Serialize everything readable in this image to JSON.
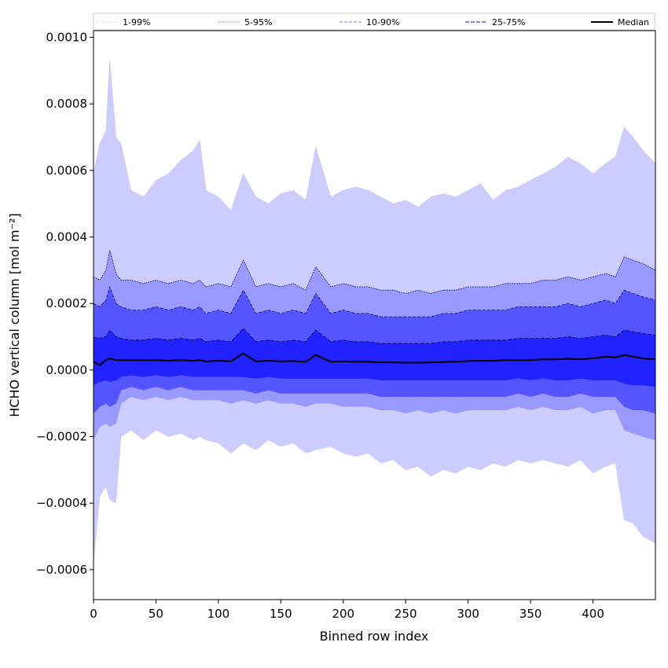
{
  "chart_data": {
    "type": "area",
    "xlabel": "Binned row index",
    "ylabel": "HCHO vertical column [mol m⁻²]",
    "xlim": [
      0,
      450
    ],
    "ylim": [
      -0.00069,
      0.00102
    ],
    "x_ticks": [
      0,
      50,
      100,
      150,
      200,
      250,
      300,
      350,
      400
    ],
    "x_tick_labels": [
      "0",
      "50",
      "100",
      "150",
      "200",
      "250",
      "300",
      "350",
      "400"
    ],
    "y_ticks": [
      -0.0006,
      -0.0004,
      -0.0002,
      0.0,
      0.0002,
      0.0004,
      0.0006,
      0.0008,
      0.001
    ],
    "y_tick_labels": [
      "−0.0006",
      "−0.0004",
      "−0.0002",
      "0.0000",
      "0.0002",
      "0.0004",
      "0.0006",
      "0.0008",
      "0.0010"
    ],
    "grid": false,
    "legend_position": "top (above plot)",
    "x": [
      0,
      5,
      10,
      13,
      18,
      22,
      30,
      40,
      50,
      60,
      70,
      80,
      85,
      90,
      100,
      110,
      120,
      130,
      140,
      150,
      160,
      170,
      178,
      190,
      200,
      210,
      220,
      230,
      240,
      250,
      260,
      270,
      280,
      290,
      300,
      310,
      320,
      330,
      340,
      350,
      360,
      370,
      380,
      390,
      400,
      410,
      418,
      425,
      432,
      440,
      450
    ],
    "series": [
      {
        "name": "1-99%",
        "color": "#ccccff",
        "upper": [
          0.00059,
          0.00068,
          0.00072,
          0.00093,
          0.0007,
          0.00068,
          0.00054,
          0.00052,
          0.00057,
          0.00059,
          0.00063,
          0.00066,
          0.00069,
          0.00054,
          0.00052,
          0.00048,
          0.00059,
          0.00052,
          0.0005,
          0.00053,
          0.00054,
          0.00051,
          0.00067,
          0.00052,
          0.00054,
          0.00055,
          0.00054,
          0.00052,
          0.0005,
          0.00051,
          0.00049,
          0.00052,
          0.00053,
          0.00052,
          0.00054,
          0.00056,
          0.00051,
          0.00054,
          0.00055,
          0.00057,
          0.00059,
          0.00061,
          0.00064,
          0.00062,
          0.00059,
          0.00062,
          0.00064,
          0.00073,
          0.0007,
          0.00066,
          0.00062
        ],
        "lower": [
          -0.00058,
          -0.00038,
          -0.00035,
          -0.00039,
          -0.0004,
          -0.0002,
          -0.00018,
          -0.00021,
          -0.00018,
          -0.0002,
          -0.00019,
          -0.00021,
          -0.0002,
          -0.00021,
          -0.00022,
          -0.00025,
          -0.00022,
          -0.00024,
          -0.00021,
          -0.00023,
          -0.00022,
          -0.00025,
          -0.00024,
          -0.00023,
          -0.00025,
          -0.00026,
          -0.00025,
          -0.00028,
          -0.00027,
          -0.0003,
          -0.00029,
          -0.00032,
          -0.0003,
          -0.00031,
          -0.00029,
          -0.0003,
          -0.00028,
          -0.00029,
          -0.00027,
          -0.00028,
          -0.00027,
          -0.00028,
          -0.00029,
          -0.00027,
          -0.00031,
          -0.00029,
          -0.00028,
          -0.00045,
          -0.00046,
          -0.0005,
          -0.00052
        ]
      },
      {
        "name": "5-95%",
        "color": "#9999ff",
        "upper": [
          0.00028,
          0.00027,
          0.0003,
          0.00036,
          0.00029,
          0.00027,
          0.00027,
          0.00026,
          0.00027,
          0.00026,
          0.00027,
          0.00026,
          0.00027,
          0.00025,
          0.00026,
          0.00025,
          0.00033,
          0.00025,
          0.00026,
          0.00025,
          0.00026,
          0.00024,
          0.00031,
          0.00025,
          0.00026,
          0.00025,
          0.00025,
          0.00024,
          0.00024,
          0.00023,
          0.00024,
          0.00023,
          0.00024,
          0.00024,
          0.00025,
          0.00025,
          0.00025,
          0.00026,
          0.00026,
          0.00026,
          0.00027,
          0.00027,
          0.00028,
          0.00027,
          0.00028,
          0.00029,
          0.00028,
          0.00034,
          0.00033,
          0.00032,
          0.0003
        ],
        "lower": [
          -0.00021,
          -0.00017,
          -0.00016,
          -0.00017,
          -0.00016,
          -0.0001,
          -8e-05,
          -9e-05,
          -8e-05,
          -9e-05,
          -8e-05,
          -9e-05,
          -9e-05,
          -9e-05,
          -9e-05,
          -0.0001,
          -9e-05,
          -0.0001,
          -9e-05,
          -0.0001,
          -0.0001,
          -0.00011,
          -0.0001,
          -0.0001,
          -0.00011,
          -0.00011,
          -0.00011,
          -0.00012,
          -0.00012,
          -0.00013,
          -0.00012,
          -0.00013,
          -0.00012,
          -0.00013,
          -0.00012,
          -0.00012,
          -0.00012,
          -0.00012,
          -0.00011,
          -0.00012,
          -0.00011,
          -0.00012,
          -0.00012,
          -0.00011,
          -0.00013,
          -0.00012,
          -0.00012,
          -0.00018,
          -0.00019,
          -0.0002,
          -0.00021
        ]
      },
      {
        "name": "10-90%",
        "color": "#5555ff",
        "upper": [
          0.0002,
          0.00019,
          0.00021,
          0.00025,
          0.0002,
          0.00019,
          0.00018,
          0.00018,
          0.00019,
          0.00018,
          0.00019,
          0.00018,
          0.00019,
          0.00017,
          0.00018,
          0.00017,
          0.00024,
          0.00017,
          0.00018,
          0.00017,
          0.00018,
          0.00017,
          0.00023,
          0.00017,
          0.00018,
          0.00017,
          0.00017,
          0.00016,
          0.00016,
          0.00016,
          0.00016,
          0.00016,
          0.00017,
          0.00017,
          0.00018,
          0.00018,
          0.00018,
          0.00018,
          0.00019,
          0.00019,
          0.00019,
          0.00019,
          0.0002,
          0.00019,
          0.0002,
          0.00021,
          0.0002,
          0.00024,
          0.00023,
          0.00022,
          0.00021
        ],
        "lower": [
          -0.00013,
          -0.00011,
          -0.0001,
          -0.00011,
          -0.0001,
          -6e-05,
          -5e-05,
          -6e-05,
          -5e-05,
          -6e-05,
          -5e-05,
          -6e-05,
          -6e-05,
          -6e-05,
          -6e-05,
          -6e-05,
          -6e-05,
          -7e-05,
          -6e-05,
          -7e-05,
          -7e-05,
          -7e-05,
          -7e-05,
          -7e-05,
          -7e-05,
          -7e-05,
          -7e-05,
          -8e-05,
          -8e-05,
          -8e-05,
          -8e-05,
          -8e-05,
          -8e-05,
          -8e-05,
          -8e-05,
          -8e-05,
          -8e-05,
          -8e-05,
          -7e-05,
          -8e-05,
          -7e-05,
          -8e-05,
          -8e-05,
          -7e-05,
          -8e-05,
          -8e-05,
          -8e-05,
          -0.00011,
          -0.00012,
          -0.00012,
          -0.00013
        ]
      },
      {
        "name": "25-75%",
        "color": "#2222ff",
        "upper": [
          0.0001,
          9.5e-05,
          0.0001,
          0.00012,
          0.0001,
          9.5e-05,
          9e-05,
          9e-05,
          9.5e-05,
          9e-05,
          9.5e-05,
          9e-05,
          9.5e-05,
          8.5e-05,
          9e-05,
          8.5e-05,
          0.000125,
          8.5e-05,
          9e-05,
          8.5e-05,
          9e-05,
          8.5e-05,
          0.00012,
          8.5e-05,
          9e-05,
          8.5e-05,
          8.5e-05,
          8e-05,
          8e-05,
          8e-05,
          8e-05,
          8e-05,
          8.5e-05,
          8.5e-05,
          9e-05,
          9e-05,
          9e-05,
          9e-05,
          9.5e-05,
          9.5e-05,
          9.5e-05,
          9.5e-05,
          0.0001,
          9.5e-05,
          0.0001,
          0.000105,
          0.0001,
          0.00012,
          0.000115,
          0.00011,
          0.000105
        ],
        "lower": [
          -4.5e-05,
          -3.5e-05,
          -3e-05,
          -3.5e-05,
          -3e-05,
          -2e-05,
          -1.5e-05,
          -2e-05,
          -1.5e-05,
          -2e-05,
          -1.5e-05,
          -2e-05,
          -2e-05,
          -2e-05,
          -2e-05,
          -2e-05,
          -2e-05,
          -2.5e-05,
          -2e-05,
          -2.5e-05,
          -2.5e-05,
          -2.5e-05,
          -2.5e-05,
          -2.5e-05,
          -2.5e-05,
          -2.5e-05,
          -2.5e-05,
          -3e-05,
          -3e-05,
          -3e-05,
          -3e-05,
          -3e-05,
          -3e-05,
          -3e-05,
          -3e-05,
          -3e-05,
          -3e-05,
          -3e-05,
          -2.5e-05,
          -3e-05,
          -2.5e-05,
          -3e-05,
          -3e-05,
          -2.5e-05,
          -3e-05,
          -3e-05,
          -3e-05,
          -4e-05,
          -4.5e-05,
          -4.5e-05,
          -5e-05
        ]
      },
      {
        "name": "Median",
        "color": "#000000",
        "values": [
          2.5e-05,
          1.5e-05,
          3e-05,
          3.5e-05,
          3e-05,
          3e-05,
          3e-05,
          3e-05,
          3e-05,
          2.8e-05,
          3e-05,
          2.8e-05,
          3e-05,
          2.6e-05,
          2.8e-05,
          2.6e-05,
          5e-05,
          2.6e-05,
          2.8e-05,
          2.6e-05,
          2.7e-05,
          2.5e-05,
          4.5e-05,
          2.5e-05,
          2.6e-05,
          2.5e-05,
          2.5e-05,
          2.3e-05,
          2.3e-05,
          2.2e-05,
          2.2e-05,
          2.3e-05,
          2.4e-05,
          2.5e-05,
          2.7e-05,
          2.8e-05,
          2.8e-05,
          3e-05,
          3e-05,
          3e-05,
          3.2e-05,
          3.2e-05,
          3.4e-05,
          3.2e-05,
          3.5e-05,
          4e-05,
          3.8e-05,
          4.5e-05,
          4e-05,
          3.5e-05,
          3.2e-05
        ]
      }
    ],
    "legend": {
      "entries": [
        "1-99%",
        "5-95%",
        "10-90%",
        "25-75%",
        "Median"
      ]
    }
  }
}
